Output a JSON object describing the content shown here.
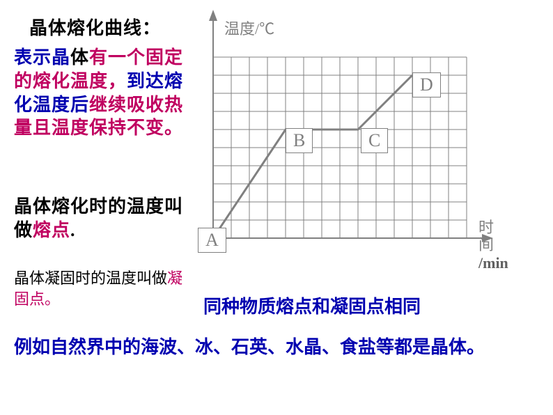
{
  "title": "晶体熔化曲线：",
  "para1": {
    "seg1": "表示晶",
    "seg2": "体",
    "seg3": "有一个固定的熔化温度，",
    "seg4": "到达熔化温度后",
    "seg5": "继续吸收热量且温度保持不变。"
  },
  "para2": {
    "seg1": "晶体熔化时的温度叫做",
    "seg2": "熔点",
    "seg3": "."
  },
  "para3": {
    "seg1": "晶体凝固时的温度叫做",
    "seg2": "凝固点。"
  },
  "para4": "同种物质熔点和凝固点相同",
  "para5": "例如自然界中的海波、冰、石英、水晶、食盐等都是晶体。",
  "chart": {
    "type": "line",
    "y_axis_label": "温度/℃",
    "x_axis_label_1": "时　　间",
    "x_axis_label_2": "/min",
    "grid": {
      "cols": 14,
      "rows": 10,
      "cell": 26
    },
    "grid_color": "#808080",
    "axis_color": "#808080",
    "line_color": "#808080",
    "line_width": 3,
    "background_color": "#ffffff",
    "points": {
      "A": {
        "gx": 0,
        "gy": 10,
        "label": "A"
      },
      "B": {
        "gx": 4,
        "gy": 4,
        "label": "B"
      },
      "C": {
        "gx": 8,
        "gy": 4,
        "label": "C"
      },
      "D": {
        "gx": 11,
        "gy": 1,
        "label": "D"
      }
    },
    "label_box_color": "#808080",
    "label_text_color": "#808080"
  }
}
